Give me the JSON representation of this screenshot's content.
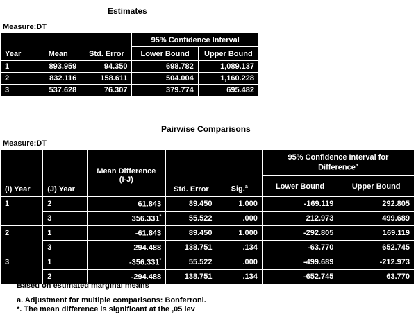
{
  "estimates": {
    "title": "Estimates",
    "measure": "Measure:DT",
    "ci_header": "95% Confidence Interval",
    "headers": [
      "Year",
      "Mean",
      "Std. Error",
      "Lower Bound",
      "Upper Bound"
    ],
    "rows": [
      [
        "1",
        "893.959",
        "94.350",
        "698.782",
        "1,089.137"
      ],
      [
        "2",
        "832.116",
        "158.611",
        "504.004",
        "1,160.228"
      ],
      [
        "3",
        "537.628",
        "76.307",
        "379.774",
        "695.482"
      ]
    ]
  },
  "pairwise": {
    "title": "Pairwise Comparisons",
    "measure": "Measure:DT",
    "ci_header_line1": "95% Confidence Interval for",
    "ci_header_line2": "Difference",
    "ci_header_sup": "a",
    "headers": {
      "i_year": "(I) Year",
      "j_year": "(J) Year",
      "mean_diff_line1": "Mean Difference",
      "mean_diff_line2": "(I-J)",
      "std_error": "Std. Error",
      "sig": "Sig.",
      "sig_sup": "a",
      "lower": "Lower Bound",
      "upper": "Upper Bound"
    },
    "rows": [
      {
        "i": "1",
        "j": "2",
        "md": "61.843",
        "star": "",
        "se": "89.450",
        "sig": "1.000",
        "lo": "-169.119",
        "up": "292.805"
      },
      {
        "i": "",
        "j": "3",
        "md": "356.331",
        "star": "*",
        "se": "55.522",
        "sig": ".000",
        "lo": "212.973",
        "up": "499.689"
      },
      {
        "i": "2",
        "j": "1",
        "md": "-61.843",
        "star": "",
        "se": "89.450",
        "sig": "1.000",
        "lo": "-292.805",
        "up": "169.119"
      },
      {
        "i": "",
        "j": "3",
        "md": "294.488",
        "star": "",
        "se": "138.751",
        "sig": ".134",
        "lo": "-63.770",
        "up": "652.745"
      },
      {
        "i": "3",
        "j": "1",
        "md": "-356.331",
        "star": "*",
        "se": "55.522",
        "sig": ".000",
        "lo": "-499.689",
        "up": "-212.973"
      },
      {
        "i": "",
        "j": "2",
        "md": "-294.488",
        "star": "",
        "se": "138.751",
        "sig": ".134",
        "lo": "-652.745",
        "up": "63.770"
      }
    ],
    "footnote_based": "Based on estimated marginal means",
    "footnote_a": "a. Adjustment for multiple comparisons: Bonferroni.",
    "footnote_star": "*. The mean difference is significant at the ,05 lev"
  }
}
